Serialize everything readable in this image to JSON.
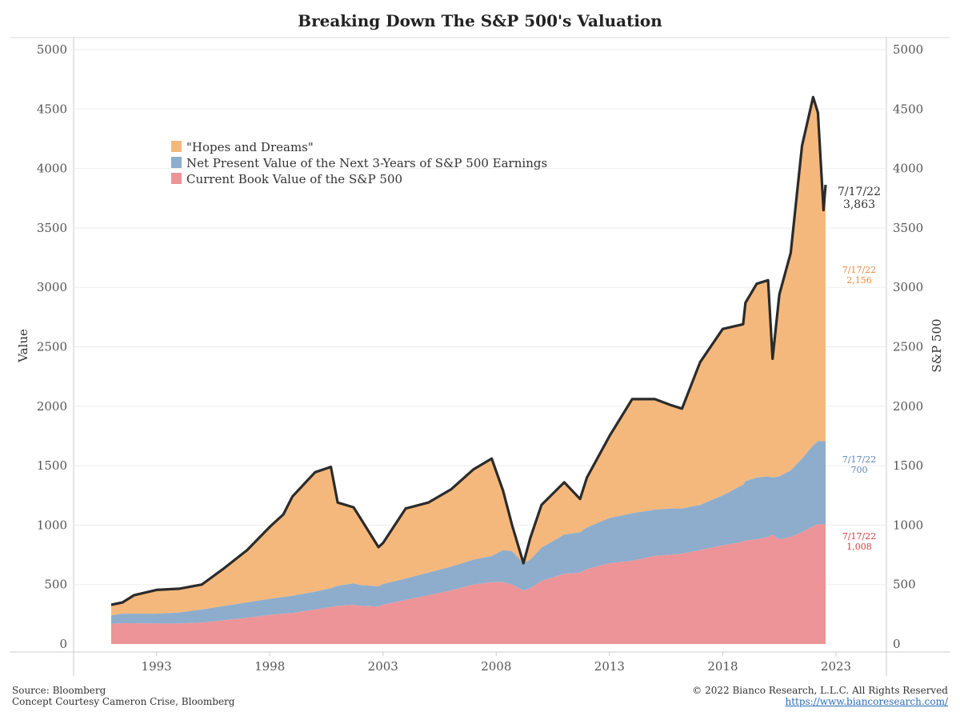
{
  "title": "Breaking Down The S&P 500's Valuation",
  "footer": {
    "source": "Source: Bloomberg",
    "concept": "Concept Courtesy Cameron Crise, Bloomberg",
    "copyright": "© 2022 Bianco Research, L.L.C. All Rights Reserved",
    "url": "https://www.biancoresearch.com/"
  },
  "colors": {
    "hopes": "#f5b87c",
    "npv": "#8eadcc",
    "book": "#ec9497",
    "sp500": "#2b2b2b",
    "anno_hopes": "#e8893a",
    "anno_npv": "#5b84b6",
    "anno_book": "#d23b44",
    "grid": "#eeeeee"
  },
  "chart_data": {
    "type": "area",
    "title": "Breaking Down The S&P 500's Valuation",
    "ylabel_left": "Value",
    "ylabel_right": "S&P 500",
    "ylim": [
      0,
      5000
    ],
    "xlim": [
      1990,
      2025
    ],
    "y_ticks": [
      0,
      500,
      1000,
      1500,
      2000,
      2500,
      3000,
      3500,
      4000,
      4500,
      5000
    ],
    "x_ticks": [
      1993,
      1998,
      2003,
      2008,
      2013,
      2018,
      2023
    ],
    "grid": true,
    "legend_position": "top-left",
    "legend": [
      "\"Hopes and Dreams\"",
      "Net Present Value of the Next 3-Years of S&P 500 Earnings",
      "Current Book Value of the S&P 500"
    ],
    "x": [
      1991.0,
      1991.5,
      1992.0,
      1993.0,
      1994.0,
      1995.0,
      1996.0,
      1997.0,
      1998.0,
      1998.6,
      1999.0,
      2000.0,
      2000.7,
      2001.0,
      2001.7,
      2002.0,
      2002.8,
      2003.0,
      2004.0,
      2005.0,
      2006.0,
      2007.0,
      2007.8,
      2008.3,
      2008.7,
      2009.2,
      2009.5,
      2010.0,
      2011.0,
      2011.7,
      2012.0,
      2013.0,
      2014.0,
      2015.0,
      2015.7,
      2016.2,
      2017.0,
      2018.0,
      2018.9,
      2019.0,
      2019.5,
      2020.0,
      2020.2,
      2020.5,
      2021.0,
      2021.5,
      2021.99,
      2022.2,
      2022.45,
      2022.54
    ],
    "series": [
      {
        "name": "Current Book Value of the S&P 500",
        "values": [
          170,
          175,
          175,
          172,
          172,
          180,
          200,
          220,
          245,
          255,
          260,
          290,
          310,
          320,
          330,
          320,
          315,
          330,
          370,
          410,
          450,
          500,
          520,
          520,
          500,
          450,
          470,
          530,
          590,
          600,
          630,
          680,
          700,
          740,
          750,
          760,
          790,
          830,
          860,
          870,
          880,
          900,
          920,
          880,
          900,
          940,
          990,
          1008,
          1005,
          1008
        ]
      },
      {
        "name": "Net Present Value of the Next 3-Years of S&P 500 Earnings",
        "values": [
          70,
          80,
          80,
          83,
          93,
          110,
          120,
          130,
          135,
          140,
          145,
          150,
          160,
          170,
          180,
          175,
          170,
          175,
          180,
          190,
          200,
          210,
          220,
          270,
          280,
          230,
          240,
          280,
          330,
          340,
          350,
          380,
          400,
          390,
          390,
          380,
          380,
          420,
          480,
          500,
          520,
          510,
          480,
          530,
          560,
          620,
          680,
          700,
          700,
          700
        ]
      },
      {
        "name": "\"Hopes and Dreams\"",
        "values": [
          90,
          95,
          155,
          200,
          195,
          210,
          320,
          440,
          605,
          695,
          835,
          1005,
          1020,
          700,
          640,
          565,
          335,
          345,
          590,
          590,
          650,
          760,
          820,
          520,
          220,
          0,
          180,
          360,
          440,
          280,
          420,
          690,
          960,
          930,
          870,
          840,
          1200,
          1400,
          1350,
          1500,
          1630,
          1650,
          1000,
          1530,
          1830,
          2630,
          2930,
          2760,
          1945,
          2155
        ]
      }
    ],
    "sp500": {
      "name": "S&P 500",
      "values": [
        330,
        350,
        410,
        455,
        465,
        500,
        640,
        790,
        985,
        1090,
        1240,
        1445,
        1490,
        1190,
        1150,
        1060,
        815,
        850,
        1140,
        1190,
        1300,
        1470,
        1560,
        1290,
        1000,
        680,
        890,
        1170,
        1360,
        1220,
        1400,
        1750,
        2060,
        2060,
        2010,
        1980,
        2370,
        2650,
        2690,
        2870,
        3030,
        3060,
        2400,
        2940,
        3290,
        4190,
        4600,
        4470,
        3650,
        3863
      ]
    },
    "annotations": [
      {
        "date": "7/17/22",
        "value": "3,863"
      },
      {
        "date": "7/17/22",
        "value": "2,156"
      },
      {
        "date": "7/17/22",
        "value": "700"
      },
      {
        "date": "7/17/22",
        "value": "1,008"
      }
    ]
  }
}
